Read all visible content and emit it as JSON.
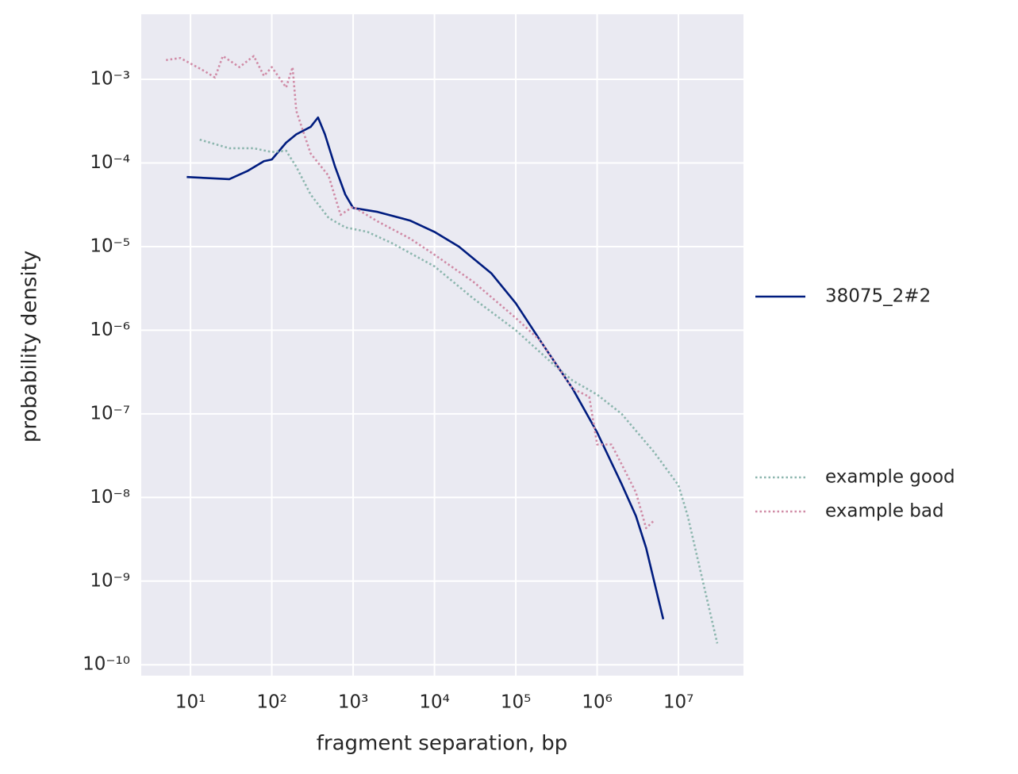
{
  "chart_data": {
    "type": "line",
    "xlabel": "fragment separation, bp",
    "ylabel": "probability density",
    "xscale": "log",
    "yscale": "log",
    "grid": true,
    "legend": "right",
    "xlim": [
      2.48,
      63000000
    ],
    "ylim": [
      7.4e-11,
      0.006
    ],
    "xticks": [
      {
        "value": 10,
        "label": "10¹"
      },
      {
        "value": 100,
        "label": "10²"
      },
      {
        "value": 1000,
        "label": "10³"
      },
      {
        "value": 10000,
        "label": "10⁴"
      },
      {
        "value": 100000,
        "label": "10⁵"
      },
      {
        "value": 1000000,
        "label": "10⁶"
      },
      {
        "value": 10000000,
        "label": "10⁷"
      }
    ],
    "yticks": [
      {
        "value": 0.001,
        "label": "10⁻³"
      },
      {
        "value": 0.0001,
        "label": "10⁻⁴"
      },
      {
        "value": 1e-05,
        "label": "10⁻⁵"
      },
      {
        "value": 1e-06,
        "label": "10⁻⁶"
      },
      {
        "value": 1e-07,
        "label": "10⁻⁷"
      },
      {
        "value": 1e-08,
        "label": "10⁻⁸"
      },
      {
        "value": 1e-09,
        "label": "10⁻⁹"
      },
      {
        "value": 1e-10,
        "label": "10⁻¹⁰"
      }
    ],
    "series": [
      {
        "name": "38075_2#2",
        "color": "#001c7f",
        "linestyle": "solid",
        "x": [
          9,
          30,
          50,
          80,
          100,
          150,
          200,
          300,
          370,
          450,
          600,
          800,
          1000,
          2000,
          5000,
          10000,
          20000,
          50000,
          100000,
          200000,
          500000,
          1000000,
          2000000,
          3000000,
          4000000,
          6500000
        ],
        "values": [
          6.8e-05,
          6.4e-05,
          8e-05,
          0.000105,
          0.00011,
          0.000175,
          0.00022,
          0.00027,
          0.00035,
          0.00022,
          9e-05,
          4.2e-05,
          2.9e-05,
          2.6e-05,
          2.05e-05,
          1.5e-05,
          1e-05,
          4.8e-06,
          2.1e-06,
          7.5e-07,
          2e-07,
          6e-08,
          1.45e-08,
          6e-09,
          2.5e-09,
          3.5e-10
        ]
      },
      {
        "name": "example good",
        "color": "#8cb6ae",
        "linestyle": "dotted",
        "x": [
          13,
          30,
          60,
          100,
          150,
          200,
          300,
          500,
          800,
          1500,
          3000,
          10000,
          30000,
          100000,
          300000,
          500000,
          1000000,
          2000000,
          5000000,
          10000000,
          13000000,
          30000000
        ],
        "values": [
          0.00019,
          0.00015,
          0.00015,
          0.000135,
          0.00014,
          9e-05,
          4.2e-05,
          2.2e-05,
          1.7e-05,
          1.5e-05,
          1.1e-05,
          5.8e-06,
          2.4e-06,
          1e-06,
          3.8e-07,
          2.5e-07,
          1.7e-07,
          1e-07,
          3.5e-08,
          1.4e-08,
          6e-09,
          1.8e-10
        ]
      },
      {
        "name": "example bad",
        "color": "#d08ba6",
        "linestyle": "dotted",
        "x": [
          5,
          7.5,
          15,
          20,
          25,
          40,
          60,
          80,
          100,
          150,
          180,
          200,
          300,
          500,
          700,
          1000,
          2000,
          5000,
          10000,
          30000,
          100000,
          200000,
          500000,
          800000,
          1000000,
          1500000,
          2000000,
          3000000,
          4000000,
          5000000
        ],
        "values": [
          0.0017,
          0.0018,
          0.00125,
          0.00105,
          0.0019,
          0.0014,
          0.0019,
          0.0011,
          0.0014,
          0.0008,
          0.0014,
          0.00042,
          0.00013,
          7e-05,
          2.4e-05,
          3e-05,
          2e-05,
          1.25e-05,
          8e-06,
          3.8e-06,
          1.4e-06,
          7.5e-07,
          2e-07,
          1.6e-07,
          4.3e-08,
          4.3e-08,
          2.5e-08,
          1.15e-08,
          4.3e-09,
          5.3e-09
        ]
      }
    ]
  }
}
